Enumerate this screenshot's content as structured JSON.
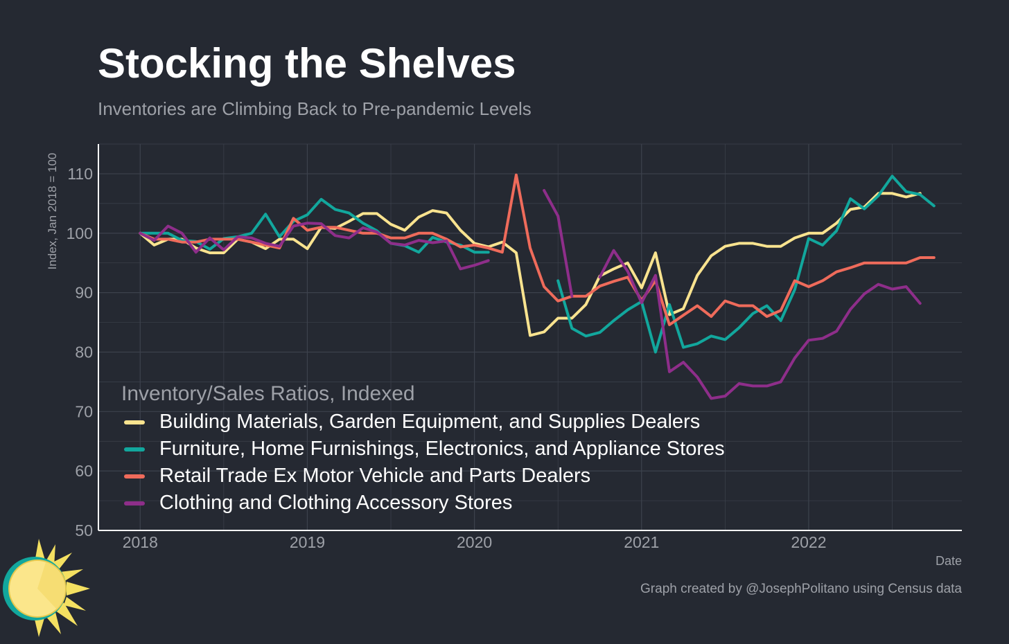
{
  "header": {
    "title": "Stocking the Shelves",
    "subtitle": "Inventories are Climbing Back to Pre-pandemic Levels"
  },
  "caption": "Graph created by @JosephPolitano using Census data",
  "chart_data": {
    "type": "line",
    "xlabel": "Date",
    "ylabel": "Index, Jan 2018 = 100",
    "ylim": [
      50,
      115
    ],
    "xlim": [
      "2017-10",
      "2022-12"
    ],
    "yticks": [
      50,
      60,
      70,
      80,
      90,
      100,
      110
    ],
    "xticks": [
      "2018",
      "2019",
      "2020",
      "2021",
      "2022"
    ],
    "grid": true,
    "legend_title": "Inventory/Sales Ratios, Indexed",
    "legend_position": "bottom-left inside",
    "start_month": "2018-01",
    "series": [
      {
        "name": "Building Materials, Garden Equipment, and Supplies Dealers",
        "color": "#f9e38f",
        "values": [
          100,
          98,
          99,
          99,
          97.5,
          96.7,
          96.7,
          99,
          98.5,
          97.4,
          99,
          99,
          97.4,
          101,
          100.8,
          102,
          103.3,
          103.3,
          101.5,
          100.5,
          102.7,
          103.8,
          103.4,
          100.5,
          98.3,
          97.7,
          98.5,
          96.7,
          82.8,
          83.4,
          85.7,
          85.7,
          88,
          92.8,
          94,
          95,
          90.8,
          96.7,
          86.3,
          87.3,
          92.9,
          96.2,
          97.8,
          98.3,
          98.3,
          97.8,
          97.8,
          99.2,
          100,
          100,
          101.7,
          104,
          104.4,
          106.7,
          106.7,
          106.1,
          106.7
        ]
      },
      {
        "name": "Furniture, Home Furnishings, Electronics, and Appliance Stores",
        "color": "#12a79d",
        "values": [
          100,
          100,
          100,
          98.8,
          98.6,
          97.3,
          99.1,
          99.4,
          100,
          103.2,
          99.4,
          102,
          103.1,
          105.7,
          104,
          103.4,
          101.7,
          100.4,
          98.3,
          97.9,
          96.8,
          99.3,
          98.5,
          98,
          96.8,
          96.8,
          null,
          null,
          null,
          null,
          92,
          84,
          82.7,
          83.3,
          85.3,
          87.1,
          88.5,
          80,
          88,
          80.8,
          81.4,
          82.7,
          82.1,
          84.1,
          86.5,
          87.8,
          85.3,
          90.5,
          99.1,
          98,
          100.4,
          105.8,
          104.1,
          106.3,
          109.6,
          107,
          106.5,
          104.6
        ]
      },
      {
        "name": "Retail Trade Ex Motor Vehicle and Parts Dealers",
        "color": "#ef6b5b",
        "values": [
          100,
          99,
          99,
          98.5,
          98.5,
          99,
          99,
          99,
          98.5,
          98,
          97.5,
          102.5,
          100.5,
          101,
          101,
          100.5,
          100,
          100,
          99.2,
          99.2,
          100,
          100,
          99,
          97.7,
          98,
          97.5,
          96.8,
          109.8,
          97.5,
          91,
          88.6,
          89.4,
          89.4,
          91.1,
          91.9,
          92.6,
          88.7,
          92,
          84.6,
          86.2,
          87.8,
          86,
          88.6,
          87.8,
          87.8,
          86,
          87,
          92,
          91,
          92,
          93.5,
          94.2,
          95,
          95,
          95,
          95,
          95.9,
          95.9
        ]
      },
      {
        "name": "Clothing and Clothing Accessory Stores",
        "color": "#8e2e8a",
        "values": [
          100,
          98.8,
          101.2,
          100,
          96.8,
          99.2,
          97.2,
          99.4,
          99.2,
          98.3,
          97.8,
          101.2,
          101.7,
          101.6,
          99.6,
          99.2,
          100.9,
          100.2,
          98.3,
          98,
          98.8,
          98.4,
          98.7,
          94,
          94.6,
          95.4,
          null,
          null,
          null,
          107.2,
          102.9,
          89.4,
          null,
          92.6,
          97.1,
          93.6,
          88.3,
          92.9,
          76.7,
          78.3,
          75.8,
          72.2,
          72.6,
          74.7,
          74.3,
          74.3,
          75,
          79,
          82,
          82.3,
          83.5,
          87.2,
          89.8,
          91.4,
          90.6,
          91,
          88.2
        ]
      }
    ]
  },
  "colors": {
    "background": "#252932",
    "grid": "#3d424d",
    "axis": "#ffffff",
    "tick_text": "#9ea1a8",
    "logo_sun_fill": "#fbe68b",
    "logo_rays": "#f4e061",
    "logo_ring": "#12a79d"
  }
}
